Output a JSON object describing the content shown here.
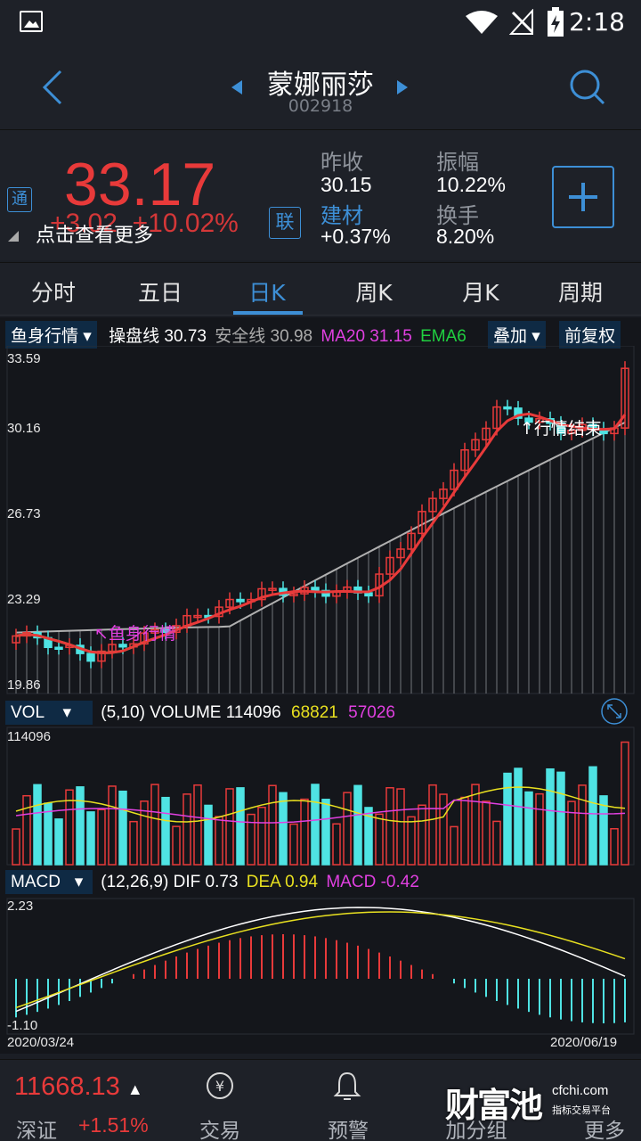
{
  "status": {
    "time": "2:18"
  },
  "header": {
    "name": "蒙娜丽莎",
    "code": "002918"
  },
  "quote": {
    "tong": "通",
    "price": "33.17",
    "change": "+3.02",
    "change_pct": "+10.02%",
    "lian": "联",
    "tip": "点击查看更多",
    "prev_close_label": "昨收",
    "prev_close": "30.15",
    "amplitude_label": "振幅",
    "amplitude": "10.22%",
    "sector_label": "建材",
    "sector_pct": "+0.37%",
    "turnover_label": "换手",
    "turnover": "8.20%"
  },
  "tabs": [
    "分时",
    "五日",
    "日K",
    "周K",
    "月K",
    "周期"
  ],
  "active_tab": 2,
  "kline": {
    "indicator_dropdown": "鱼身行情",
    "caopan_label": "操盘线",
    "caopan": "30.73",
    "anquan_label": "安全线",
    "anquan": "30.98",
    "ma20_label": "MA20",
    "ma20": "31.15",
    "ema6_label": "EMA6",
    "overlay_dropdown": "叠加",
    "fq_label": "前复权",
    "y_ticks": [
      "33.59",
      "30.16",
      "26.73",
      "23.29",
      "19.86"
    ],
    "annotation_start": "↖鱼身行情",
    "annotation_end": "↑行情结束"
  },
  "volume": {
    "dropdown": "VOL",
    "params": "(5,10)",
    "volume_label": "VOLUME",
    "volume": "114096",
    "ma5": "68821",
    "ma10": "57026",
    "y_max": "114096"
  },
  "macd": {
    "dropdown": "MACD",
    "params": "(12,26,9)",
    "dif_label": "DIF",
    "dif": "0.73",
    "dea_label": "DEA",
    "dea": "0.94",
    "macd_label": "MACD",
    "macd": "-0.42",
    "y_max": "2.23",
    "y_min": "-1.10",
    "date_start": "2020/03/24",
    "date_end": "2020/06/19"
  },
  "bottom": {
    "index_value": "11668.13",
    "index_name": "深证",
    "index_pct": "+1.51%",
    "nav": [
      "交易",
      "预警",
      "加分组",
      "更多"
    ],
    "watermark_main": "财富池",
    "watermark_domain": "cfchi.com",
    "watermark_sub": "指标交易平台"
  },
  "colors": {
    "up": "#e83a3a",
    "down": "#4fe3e3",
    "accent": "#3d8fd6",
    "magenta": "#e040e0",
    "yellow": "#e8e020",
    "green": "#20d040"
  }
}
